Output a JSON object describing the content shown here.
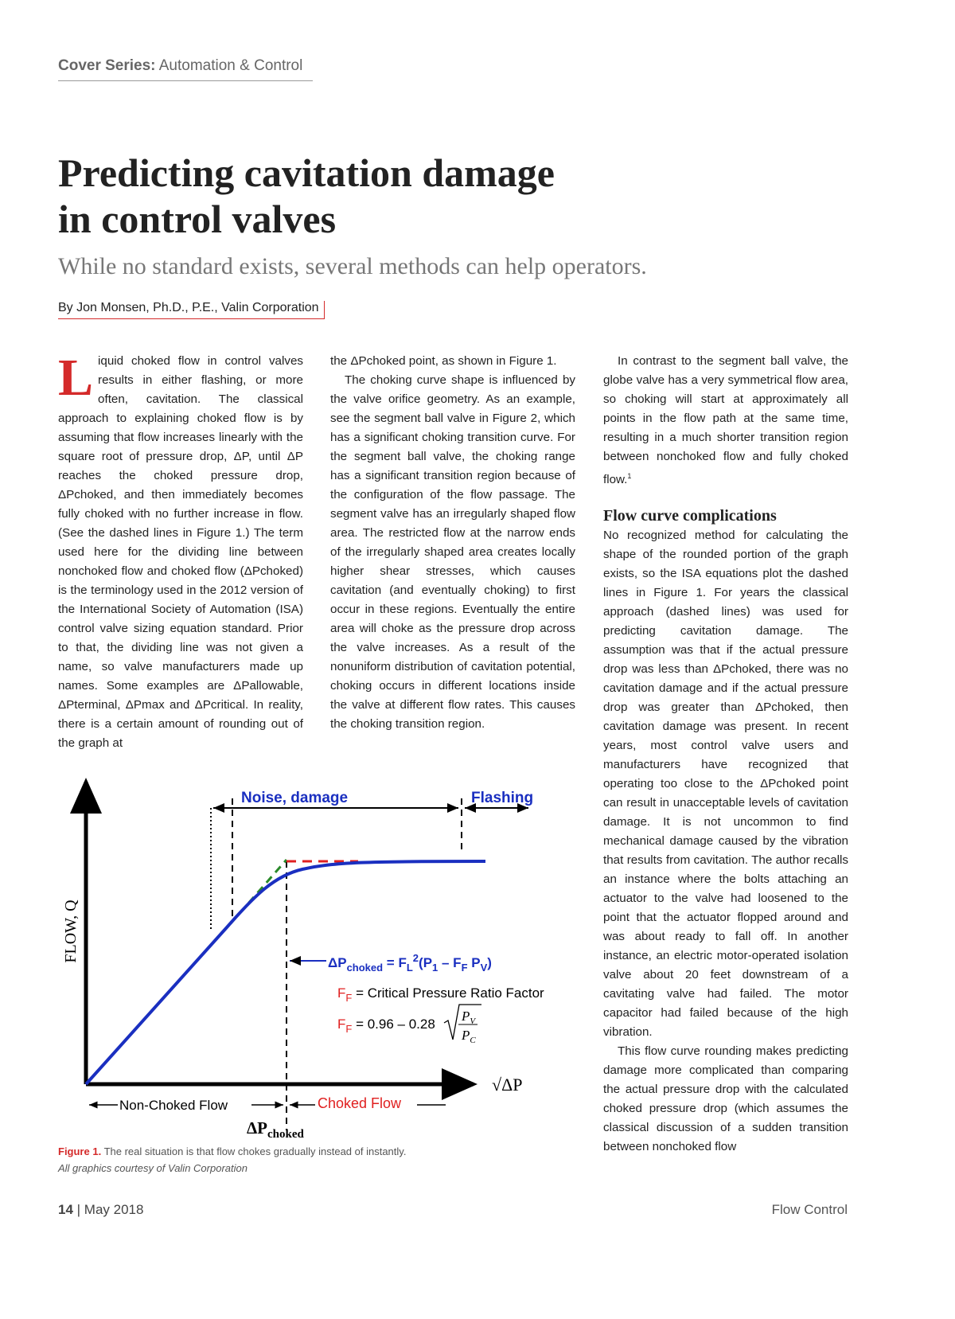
{
  "header": {
    "series_label": "Cover Series:",
    "series_topic": "Automation & Control"
  },
  "article": {
    "title_lines": [
      "Predicting cavitation damage",
      "in control valves"
    ],
    "subtitle": "While no standard exists, several methods can help operators.",
    "byline": "By Jon Monsen, Ph.D., P.E., Valin Corporation",
    "drop_cap": "L",
    "column1": [
      "iquid choked flow in control valves results in either flashing, or more often, cavitation. The classical approach to explaining choked flow is by assuming that flow increases linearly with the square root of pressure drop, ΔP, until ΔP reaches the choked pressure drop, ΔPchoked, and then immediately becomes fully choked with no further increase in flow. (See the dashed lines in Figure 1.) The term used here for the dividing line between nonchoked flow and choked flow (ΔPchoked) is the terminology used in the 2012 version of the International Society of Automation (ISA) control valve sizing equation standard. Prior to that, the dividing line was not given a name, so valve manufacturers made up names. Some examples are ΔPallowable, ΔPterminal, ΔPmax and ΔPcritical. In reality, there is a certain amount of rounding out of the graph at"
    ],
    "column2": [
      "the ΔPchoked point, as shown in Figure 1.",
      "The choking curve shape is influenced by the valve orifice geometry. As an example, see the segment ball valve in Figure 2, which has a significant choking transition curve. For the segment ball valve, the choking range has a significant transition region because of the configuration of the flow passage. The segment valve has an irregularly shaped flow area. The restricted flow at the narrow ends of the irregularly shaped area creates locally higher shear stresses, which causes cavitation (and eventually choking) to first occur in these regions. Eventually the entire area will choke as the pressure drop across the valve increases. As a result of the nonuniform distribution of cavitation potential, choking occurs in different locations inside the valve at different flow rates. This causes the choking transition region."
    ],
    "column3_intro": "In contrast to the segment ball valve, the globe valve has a very symmetrical flow area, so choking will start at approximately all points in the flow path at the same time, resulting in a much shorter transition region between nonchoked flow and fully choked flow.",
    "column3_intro_ref": "1",
    "heading": "Flow curve complications",
    "column3": [
      "No recognized method for calculating the shape of the rounded portion of the graph exists, so the ISA equations plot the dashed lines in Figure 1. For years the classical approach (dashed lines) was used for predicting cavitation damage. The assumption was that if the actual pressure drop was less than ΔPchoked, there was no cavitation damage and if the actual pressure drop was greater than ΔPchoked, then cavitation damage was present. In recent years, most control valve users and manufacturers have recognized that operating too close to the ΔPchoked point can result in unacceptable levels of cavitation damage. It is not uncommon to find mechanical damage caused by the vibration that results from cavitation. The author recalls an instance where the bolts attaching an actuator to the valve had loosened to the point that the actuator flopped around and was about ready to fall off. In another instance, an electric motor-operated isolation valve about 20 feet downstream of a cavitating valve had failed. The motor capacitor had failed because of the high vibration.",
      "This flow curve rounding makes predicting damage more complicated than comparing the actual pressure drop with the calculated choked pressure drop (which assumes the classical discussion of a sudden transition between nonchoked flow"
    ]
  },
  "figure": {
    "y_axis": "FLOW, Q",
    "x_axis": "√ΔP",
    "noise": "Noise, damage",
    "flashing": "Flashing",
    "formula": [
      "ΔP",
      "choked",
      " = F",
      "L",
      "2",
      "(P",
      "1",
      " – F",
      "F",
      " P",
      "V",
      ")"
    ],
    "ff_def": [
      "F",
      "F",
      " = Critical Pressure Ratio Factor"
    ],
    "ff_eq": [
      "F",
      "F",
      " = 0.96 – 0.28",
      "P",
      "V",
      "P",
      "C"
    ],
    "non_choked": "Non-Choked Flow",
    "choked": "Choked Flow",
    "dp_choked": [
      "ΔP",
      "choked"
    ],
    "caption_label": "Figure 1.",
    "caption": "The real situation is that flow chokes gradually instead of instantly.",
    "credit": "All graphics courtesy of Valin Corporation"
  },
  "footer": {
    "page": "14",
    "date": "May 2018",
    "magazine": "Flow Control"
  }
}
